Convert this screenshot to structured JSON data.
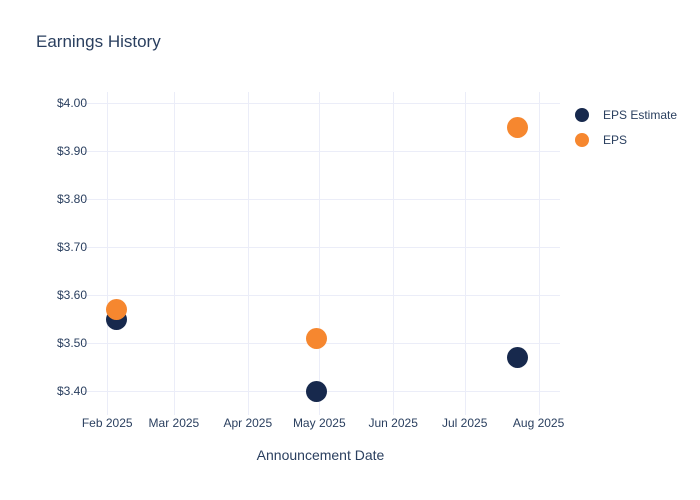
{
  "chart_data": {
    "type": "scatter",
    "title": "Earnings History",
    "xlabel": "Announcement Date",
    "ylabel": "",
    "grid": true,
    "legend_position": "right",
    "x_range": [
      "2025-01-21",
      "2025-08-10"
    ],
    "y_range": [
      3.3604,
      4.0229
    ],
    "x_ticks": [
      {
        "value": "2025-02-01",
        "label": "Feb 2025"
      },
      {
        "value": "2025-03-01",
        "label": "Mar 2025"
      },
      {
        "value": "2025-04-01",
        "label": "Apr 2025"
      },
      {
        "value": "2025-05-01",
        "label": "May 2025"
      },
      {
        "value": "2025-06-01",
        "label": "Jun 2025"
      },
      {
        "value": "2025-07-01",
        "label": "Jul 2025"
      },
      {
        "value": "2025-08-01",
        "label": "Aug 2025"
      }
    ],
    "y_ticks": [
      {
        "value": 3.4,
        "label": "$3.40"
      },
      {
        "value": 3.5,
        "label": "$3.50"
      },
      {
        "value": 3.6,
        "label": "$3.60"
      },
      {
        "value": 3.7,
        "label": "$3.70"
      },
      {
        "value": 3.8,
        "label": "$3.80"
      },
      {
        "value": 3.9,
        "label": "$3.90"
      },
      {
        "value": 4.0,
        "label": "$4.00"
      }
    ],
    "series": [
      {
        "name": "EPS Estimate",
        "color": "#17294d",
        "marker": "circle",
        "points": [
          {
            "x": "2025-02-05",
            "y": 3.55
          },
          {
            "x": "2025-04-30",
            "y": 3.4
          },
          {
            "x": "2025-07-23",
            "y": 3.47
          }
        ]
      },
      {
        "name": "EPS",
        "color": "#f6872f",
        "marker": "circle",
        "points": [
          {
            "x": "2025-02-05",
            "y": 3.57
          },
          {
            "x": "2025-04-30",
            "y": 3.51
          },
          {
            "x": "2025-07-23",
            "y": 3.95
          }
        ]
      }
    ],
    "marker_size": 21,
    "colors": {
      "text": "#2a3f5f",
      "grid": "#ebedf8",
      "background": "#ffffff"
    }
  }
}
